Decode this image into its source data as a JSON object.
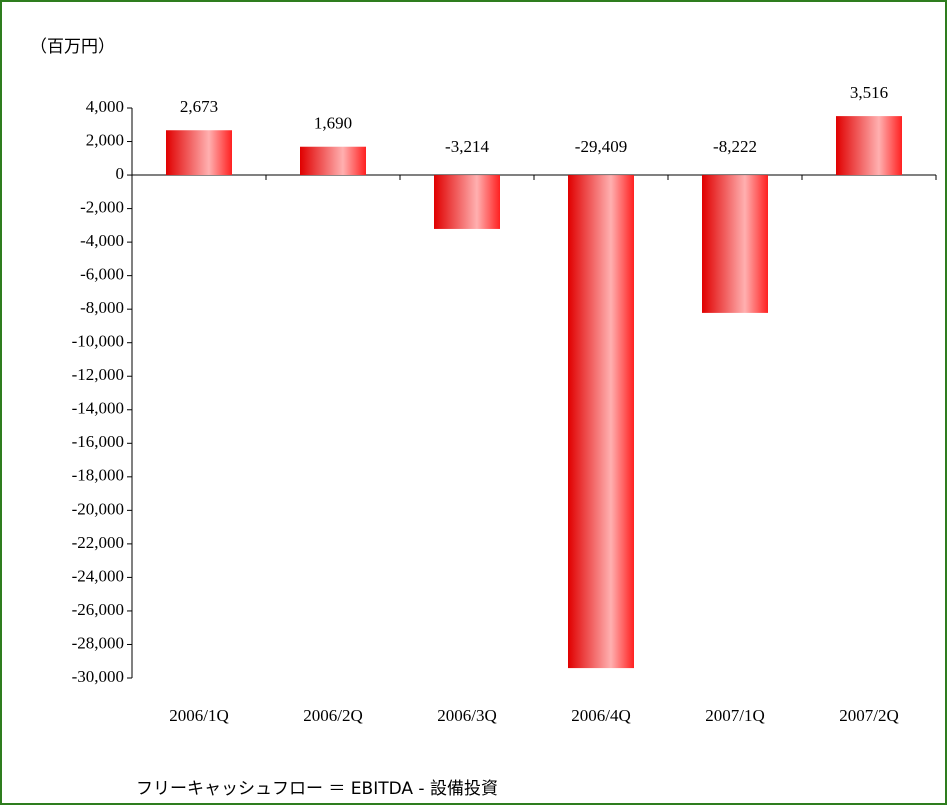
{
  "chart_data": {
    "type": "bar",
    "unit_label": "（百万円）",
    "note": "フリーキャッシュフロー ＝ EBITDA - 設備投資",
    "categories": [
      "2006/1Q",
      "2006/2Q",
      "2006/3Q",
      "2006/4Q",
      "2007/1Q",
      "2007/2Q"
    ],
    "values": [
      2673,
      1690,
      -3214,
      -29409,
      -8222,
      3516
    ],
    "value_labels": [
      "2,673",
      "1,690",
      "-3,214",
      "-29,409",
      "-8,222",
      "3,516"
    ],
    "color": "#ff0000",
    "negative_label_color": "#ff0000",
    "ylim": [
      -30000,
      4000
    ],
    "yticks": [
      {
        "value": 4000,
        "label": "4,000"
      },
      {
        "value": 2000,
        "label": "2,000"
      },
      0,
      {
        "value": -2000,
        "label": "-2,000"
      },
      {
        "value": -4000,
        "label": "-4,000"
      },
      {
        "value": -6000,
        "label": "-6,000"
      },
      {
        "value": -8000,
        "label": "-8,000"
      },
      {
        "value": -10000,
        "label": "-10,000"
      },
      {
        "value": -12000,
        "label": "-12,000"
      },
      {
        "value": -14000,
        "label": "-14,000"
      },
      {
        "value": -16000,
        "label": "-16,000"
      },
      {
        "value": -18000,
        "label": "-18,000"
      },
      {
        "value": -20000,
        "label": "-20,000"
      },
      {
        "value": -22000,
        "label": "-22,000"
      },
      {
        "value": -24000,
        "label": "-24,000"
      },
      {
        "value": -26000,
        "label": "-26,000"
      },
      {
        "value": -28000,
        "label": "-28,000"
      },
      {
        "value": -30000,
        "label": "-30,000"
      }
    ],
    "grid": false
  }
}
